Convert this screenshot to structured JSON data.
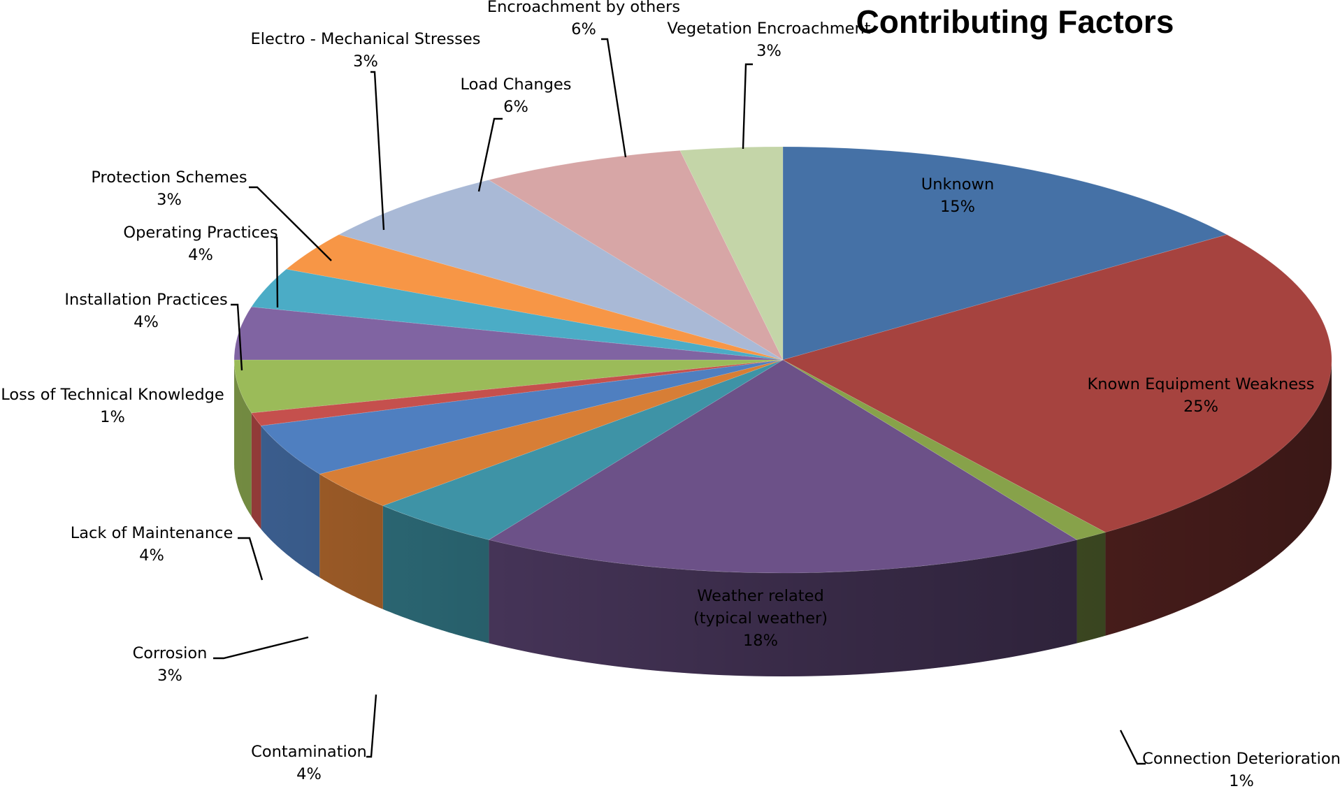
{
  "chart_data": {
    "type": "pie",
    "style": "3d-exploded-perspective",
    "title": "Contributing Factors",
    "slices": [
      {
        "label": "Unknown",
        "value": 15,
        "value_label": "15%",
        "color": "#4571A6"
      },
      {
        "label": "Known Equipment Weakness",
        "value": 25,
        "value_label": "25%",
        "color": "#A6433F"
      },
      {
        "label": "Connection Deterioration",
        "value": 1,
        "value_label": "1%",
        "color": "#87A24A"
      },
      {
        "label": "Weather related (typical weather)",
        "label_lines": [
          "Weather related",
          "(typical weather)"
        ],
        "value": 18,
        "value_label": "18%",
        "color": "#6C5188"
      },
      {
        "label": "Contamination",
        "value": 4,
        "value_label": "4%",
        "color": "#3E93A6"
      },
      {
        "label": "Corrosion",
        "value": 3,
        "value_label": "3%",
        "color": "#D77E36"
      },
      {
        "label": "Lack of Maintenance",
        "value": 4,
        "value_label": "4%",
        "color": "#4F7FC0"
      },
      {
        "label": "Loss of Technical Knowledge",
        "value": 1,
        "value_label": "1%",
        "color": "#C5504D"
      },
      {
        "label": "Installation Practices",
        "value": 4,
        "value_label": "4%",
        "color": "#9BBB59"
      },
      {
        "label": "Operating Practices",
        "value": 4,
        "value_label": "4%",
        "color": "#8064A2"
      },
      {
        "label": "Protection Schemes",
        "value": 3,
        "value_label": "3%",
        "color": "#4BACC6"
      },
      {
        "label": "Electro - Mechanical Stresses",
        "value": 3,
        "value_label": "3%",
        "color": "#F79646"
      },
      {
        "label": "Load Changes",
        "value": 6,
        "value_label": "6%",
        "color": "#A9B9D6"
      },
      {
        "label": "Encroachment by others",
        "value": 6,
        "value_label": "6%",
        "color": "#D7A6A6"
      },
      {
        "label": "Vegetation Encroachment",
        "value": 3,
        "value_label": "3%",
        "color": "#C4D5A8"
      }
    ],
    "legend": "none"
  }
}
